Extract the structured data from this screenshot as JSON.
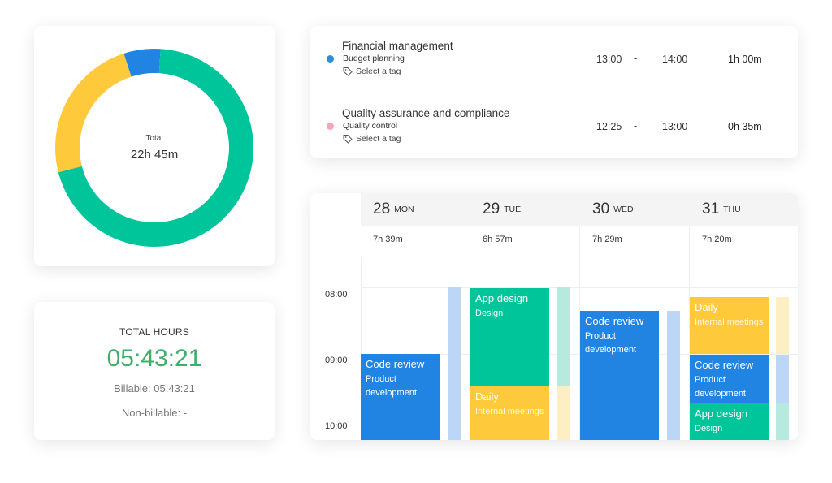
{
  "colors": {
    "blue": "#2184e3",
    "green": "#00c49a",
    "yellow": "#ffc93c",
    "teal_accent": "#3fae6a",
    "light_blue": "#bcd7f5",
    "light_green": "#b7eadf",
    "light_yellow": "#fdeec4",
    "dot_blue": "#2a8fdc",
    "dot_pink": "#f3a8b8"
  },
  "donut": {
    "total_label": "Total",
    "total_value": "22h 45m",
    "segments": [
      {
        "color": "#2184e3",
        "fraction": 0.06
      },
      {
        "color": "#00c49a",
        "fraction": 0.7
      },
      {
        "color": "#ffc93c",
        "fraction": 0.24
      }
    ]
  },
  "total_hours": {
    "title": "TOTAL HOURS",
    "value": "05:43:21",
    "billable": "Billable: 05:43:21",
    "non_billable": "Non-billable: -"
  },
  "entries": [
    {
      "title": "Financial management",
      "subtitle": "Budget planning",
      "tag_label": "Select a tag",
      "start": "13:00",
      "dash": "-",
      "end": "14:00",
      "duration": "1h 00m",
      "dot_color": "#2a8fdc"
    },
    {
      "title": "Quality assurance and compliance",
      "subtitle": "Quality control",
      "tag_label": "Select a tag",
      "start": "12:25",
      "dash": "-",
      "end": "13:00",
      "duration": "0h 35m",
      "dot_color": "#f3a8b8"
    }
  ],
  "calendar": {
    "days": [
      {
        "num": "28",
        "name": "MON",
        "total": "7h 39m"
      },
      {
        "num": "29",
        "name": "TUE",
        "total": "6h 57m"
      },
      {
        "num": "30",
        "name": "WED",
        "total": "7h 29m"
      },
      {
        "num": "31",
        "name": "THU",
        "total": "7h 20m"
      }
    ],
    "times": [
      "08:00",
      "09:00",
      "10:00"
    ],
    "events": {
      "mon_code_review": {
        "title": "Code review",
        "sub": "Product development"
      },
      "tue_app_design": {
        "title": "App design",
        "sub": "Design"
      },
      "tue_daily": {
        "title": "Daily",
        "sub": "Internal meetings"
      },
      "wed_code_review": {
        "title": "Code review",
        "sub": "Product development"
      },
      "thu_daily": {
        "title": "Daily",
        "sub": "Internal meetings"
      },
      "thu_code_review": {
        "title": "Code review",
        "sub": "Product development"
      },
      "thu_app_design": {
        "title": "App design",
        "sub": "Design"
      }
    }
  }
}
